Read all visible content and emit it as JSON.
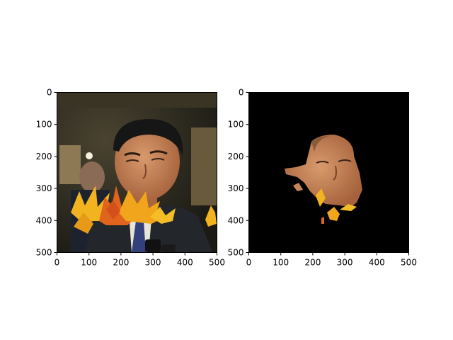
{
  "chart_data": [
    {
      "type": "image",
      "title": "",
      "xlabel": "",
      "ylabel": "",
      "xlim": [
        0,
        500
      ],
      "ylim": [
        500,
        0
      ],
      "xticks": [
        0,
        100,
        200,
        300,
        400,
        500
      ],
      "yticks": [
        0,
        100,
        200,
        300,
        400,
        500
      ],
      "xtick_labels": [
        "0",
        "100",
        "200",
        "300",
        "400",
        "500"
      ],
      "ytick_labels": [
        "0",
        "100",
        "200",
        "300",
        "400",
        "500"
      ],
      "grid": false,
      "content": "photo of a man in a dark suit, white shirt and blue tie, with a cluster of yellow-orange autumn leaves overlaid across the lower face"
    },
    {
      "type": "image",
      "title": "",
      "xlabel": "",
      "ylabel": "",
      "xlim": [
        0,
        500
      ],
      "ylim": [
        500,
        0
      ],
      "xticks": [
        0,
        100,
        200,
        300,
        400,
        500
      ],
      "yticks": [
        0,
        100,
        200,
        300,
        400,
        500
      ],
      "xtick_labels": [
        "0",
        "100",
        "200",
        "300",
        "400",
        "500"
      ],
      "ytick_labels": [
        "0",
        "100",
        "200",
        "300",
        "400",
        "500"
      ],
      "grid": false,
      "content": "segmentation mask output: black background with only the face/skin region of the man visible, leaf fragments at the lower edge"
    }
  ],
  "colors": {
    "background": "#ffffff",
    "mask_background": "#000000",
    "skin": "#c8855a",
    "leaf_yellow": "#f2b320",
    "leaf_orange": "#e0641c",
    "suit": "#23262b",
    "shirt": "#e9e5d6",
    "tie": "#33407a"
  }
}
